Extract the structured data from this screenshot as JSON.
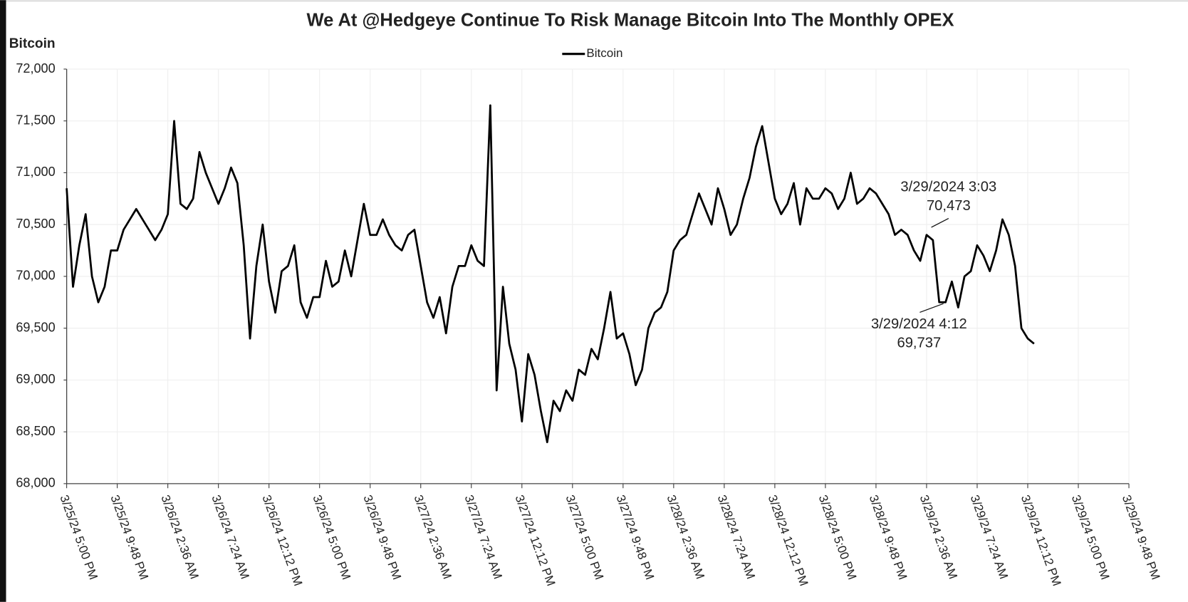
{
  "chart_data": {
    "type": "line",
    "title": "We At @Hedgeye Continue To Risk Manage Bitcoin Into The Monthly OPEX",
    "y_label": "Bitcoin",
    "grid": true,
    "legend": "top",
    "xlim": [
      45376.70833,
      45380.90833
    ],
    "xticks": [
      {
        "value": 45376.70833,
        "label": "3/25/24 5:00 PM"
      },
      {
        "value": 45376.90833,
        "label": "3/25/24 9:48 PM"
      },
      {
        "value": 45377.10833,
        "label": "3/26/24 2:36 AM"
      },
      {
        "value": 45377.30833,
        "label": "3/26/24 7:24 AM"
      },
      {
        "value": 45377.50833,
        "label": "3/26/24 12:12 PM"
      },
      {
        "value": 45377.70833,
        "label": "3/26/24 5:00 PM"
      },
      {
        "value": 45377.90833,
        "label": "3/26/24 9:48 PM"
      },
      {
        "value": 45378.10833,
        "label": "3/27/24 2:36 AM"
      },
      {
        "value": 45378.30833,
        "label": "3/27/24 7:24 AM"
      },
      {
        "value": 45378.50833,
        "label": "3/27/24 12:12 PM"
      },
      {
        "value": 45378.70833,
        "label": "3/27/24 5:00 PM"
      },
      {
        "value": 45378.90833,
        "label": "3/27/24 9:48 PM"
      },
      {
        "value": 45379.10833,
        "label": "3/28/24 2:36 AM"
      },
      {
        "value": 45379.30833,
        "label": "3/28/24 7:24 AM"
      },
      {
        "value": 45379.50833,
        "label": "3/28/24 12:12 PM"
      },
      {
        "value": 45379.70833,
        "label": "3/28/24 5:00 PM"
      },
      {
        "value": 45379.90833,
        "label": "3/28/24 9:48 PM"
      },
      {
        "value": 45380.10833,
        "label": "3/29/24 2:36 AM"
      },
      {
        "value": 45380.30833,
        "label": "3/29/24 7:24 AM"
      },
      {
        "value": 45380.50833,
        "label": "3/29/24 12:12 PM"
      },
      {
        "value": 45380.70833,
        "label": "3/29/24 5:00 PM"
      },
      {
        "value": 45380.90833,
        "label": "3/29/24 9:48 PM"
      }
    ],
    "ylim": [
      68000,
      72000
    ],
    "yticks": [
      {
        "value": 68000,
        "label": "68,000"
      },
      {
        "value": 68500,
        "label": "68,500"
      },
      {
        "value": 69000,
        "label": "69,000"
      },
      {
        "value": 69500,
        "label": "69,500"
      },
      {
        "value": 70000,
        "label": "70,000"
      },
      {
        "value": 70500,
        "label": "70,500"
      },
      {
        "value": 71000,
        "label": "71,000"
      },
      {
        "value": 71500,
        "label": "71,500"
      },
      {
        "value": 72000,
        "label": "72,000"
      }
    ],
    "x": [
      45376.70833,
      45376.73333,
      45376.75833,
      45376.78333,
      45376.80833,
      45376.83333,
      45376.85833,
      45376.88333,
      45376.90833,
      45376.93333,
      45376.95833,
      45376.98333,
      45377.00833,
      45377.03333,
      45377.05833,
      45377.08333,
      45377.10833,
      45377.13333,
      45377.15833,
      45377.18333,
      45377.20833,
      45377.23333,
      45377.25833,
      45377.28333,
      45377.30833,
      45377.33333,
      45377.35833,
      45377.38333,
      45377.40833,
      45377.43333,
      45377.45833,
      45377.48333,
      45377.50833,
      45377.53333,
      45377.55833,
      45377.58333,
      45377.60833,
      45377.63333,
      45377.65833,
      45377.68333,
      45377.70833,
      45377.73333,
      45377.75833,
      45377.78333,
      45377.80833,
      45377.83333,
      45377.85833,
      45377.88333,
      45377.90833,
      45377.93333,
      45377.95833,
      45377.98333,
      45378.00833,
      45378.03333,
      45378.05833,
      45378.08333,
      45378.10833,
      45378.13333,
      45378.15833,
      45378.18333,
      45378.20833,
      45378.23333,
      45378.25833,
      45378.28333,
      45378.30833,
      45378.33333,
      45378.35833,
      45378.38333,
      45378.40833,
      45378.43333,
      45378.45833,
      45378.48333,
      45378.50833,
      45378.53333,
      45378.55833,
      45378.58333,
      45378.60833,
      45378.63333,
      45378.65833,
      45378.68333,
      45378.70833,
      45378.73333,
      45378.75833,
      45378.78333,
      45378.80833,
      45378.83333,
      45378.85833,
      45378.88333,
      45378.90833,
      45378.93333,
      45378.95833,
      45378.98333,
      45379.00833,
      45379.03333,
      45379.05833,
      45379.08333,
      45379.10833,
      45379.13333,
      45379.15833,
      45379.18333,
      45379.20833,
      45379.23333,
      45379.25833,
      45379.28333,
      45379.30833,
      45379.33333,
      45379.35833,
      45379.38333,
      45379.40833,
      45379.43333,
      45379.45833,
      45379.48333,
      45379.50833,
      45379.53333,
      45379.55833,
      45379.58333,
      45379.60833,
      45379.63333,
      45379.65833,
      45379.68333,
      45379.70833,
      45379.73333,
      45379.75833,
      45379.78333,
      45379.80833,
      45379.83333,
      45379.85833,
      45379.88333,
      45379.90833,
      45379.93333,
      45379.95833,
      45379.98333,
      45380.00833,
      45380.03333,
      45380.05833,
      45380.08333,
      45380.10833,
      45380.13333,
      45380.15833,
      45380.18333,
      45380.20833,
      45380.23333,
      45380.25833,
      45380.28333,
      45380.30833,
      45380.33333,
      45380.35833,
      45380.38333,
      45380.40833,
      45380.43333,
      45380.45833,
      45380.48333,
      45380.50833,
      45380.53333
    ],
    "series": [
      {
        "name": "Bitcoin",
        "color": "#000000",
        "values": [
          70850,
          69900,
          70300,
          70600,
          70000,
          69750,
          69900,
          70250,
          70250,
          70450,
          70550,
          70650,
          70550,
          70450,
          70350,
          70450,
          70600,
          71500,
          70700,
          70650,
          70750,
          71200,
          71000,
          70850,
          70700,
          70850,
          71050,
          70900,
          70300,
          69400,
          70100,
          70500,
          69950,
          69650,
          70050,
          70100,
          70300,
          69750,
          69600,
          69800,
          69800,
          70150,
          69900,
          69950,
          70250,
          70000,
          70350,
          70700,
          70400,
          70400,
          70550,
          70400,
          70300,
          70250,
          70400,
          70450,
          70100,
          69750,
          69600,
          69800,
          69450,
          69900,
          70100,
          70100,
          70300,
          70150,
          70100,
          71650,
          68900,
          69900,
          69350,
          69100,
          68600,
          69250,
          69050,
          68700,
          68400,
          68800,
          68700,
          68900,
          68800,
          69100,
          69050,
          69300,
          69200,
          69500,
          69850,
          69400,
          69450,
          69250,
          68950,
          69100,
          69500,
          69650,
          69700,
          69850,
          70250,
          70350,
          70400,
          70600,
          70800,
          70650,
          70500,
          70850,
          70650,
          70400,
          70500,
          70750,
          70950,
          71250,
          71450,
          71100,
          70750,
          70600,
          70700,
          70900,
          70500,
          70850,
          70750,
          70750,
          70850,
          70800,
          70650,
          70750,
          71000,
          70700,
          70750,
          70850,
          70800,
          70700,
          70600,
          70400,
          70450,
          70400,
          70250,
          70150,
          70400,
          70350,
          69750,
          69750,
          69950,
          69700,
          70000,
          70050,
          70300,
          70200,
          70050,
          70250,
          70550,
          70400,
          70100,
          69500,
          69400,
          69350
        ]
      }
    ],
    "annotations": [
      {
        "x": 45380.12708,
        "y": 70473,
        "text": "3/29/2024 3:03",
        "value_label": "70,473"
      },
      {
        "x": 45380.175,
        "y": 69737,
        "text": "3/29/2024 4:12",
        "value_label": "69,737"
      }
    ]
  }
}
